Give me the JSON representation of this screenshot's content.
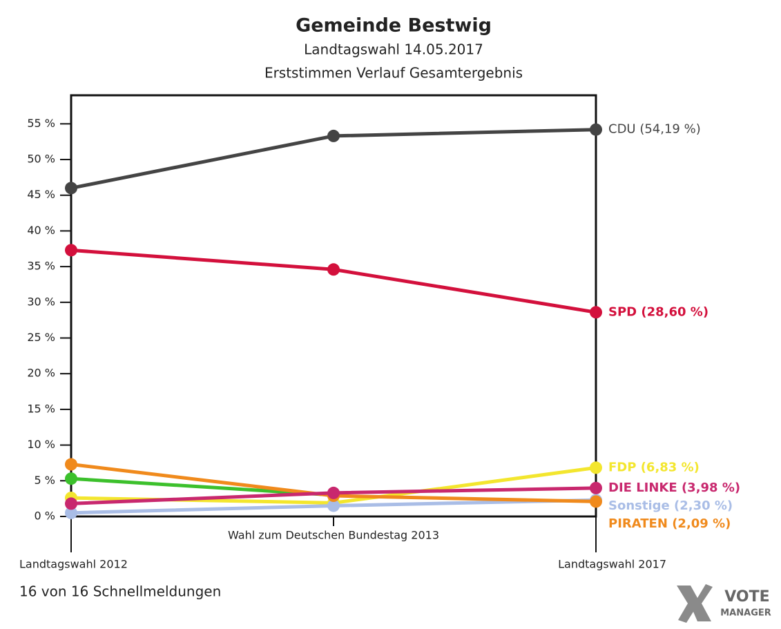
{
  "chart_data": {
    "type": "line",
    "title": "Gemeinde Bestwig",
    "subtitle": [
      "Landtagswahl 14.05.2017",
      "Erststimmen Verlauf Gesamtergebnis"
    ],
    "categories": [
      "Landtagswahl 2012",
      "Wahl zum Deutschen Bundestag 2013",
      "Landtagswahl 2017"
    ],
    "ylim": [
      0,
      59
    ],
    "yticks": [
      {
        "value": 0,
        "label": "0 %"
      },
      {
        "value": 5,
        "label": "5 %"
      },
      {
        "value": 10,
        "label": "10 %"
      },
      {
        "value": 15,
        "label": "15 %"
      },
      {
        "value": 20,
        "label": "20 %"
      },
      {
        "value": 25,
        "label": "25 %"
      },
      {
        "value": 30,
        "label": "30 %"
      },
      {
        "value": 35,
        "label": "35 %"
      },
      {
        "value": 40,
        "label": "40 %"
      },
      {
        "value": 45,
        "label": "45 %"
      },
      {
        "value": 50,
        "label": "50 %"
      },
      {
        "value": 55,
        "label": "55 %"
      }
    ],
    "series": [
      {
        "color": "#3cc02c",
        "values": [
          5.3,
          3.0,
          null
        ]
      },
      {
        "name": "FDP",
        "end_label": "FDP (6,83 %)",
        "color": "#f3e62e",
        "values": [
          2.6,
          1.9,
          6.83
        ]
      },
      {
        "name": "Sonstige",
        "end_label": "Sonstige (2,30 %)",
        "color": "#a9bde6",
        "values": [
          0.5,
          1.5,
          2.3
        ]
      },
      {
        "name": "PIRATEN",
        "end_label": "PIRATEN (2,09 %)",
        "color": "#f08a1c",
        "values": [
          7.3,
          2.9,
          2.09
        ]
      },
      {
        "name": "DIE LINKE",
        "end_label": "DIE LINKE (3,98 %)",
        "color": "#c8286e",
        "values": [
          1.8,
          3.3,
          3.98
        ]
      },
      {
        "name": "SPD",
        "end_label": "SPD (28,60 %)",
        "color": "#d3103c",
        "values": [
          37.3,
          34.6,
          28.6
        ]
      },
      {
        "name": "CDU",
        "end_label": "CDU (54,19 %)",
        "color": "#444444",
        "values": [
          46.0,
          53.3,
          54.19
        ]
      }
    ],
    "footer": "16 von 16 Schnellmeldungen",
    "logo": [
      "VOTE",
      "MANAGER"
    ]
  }
}
